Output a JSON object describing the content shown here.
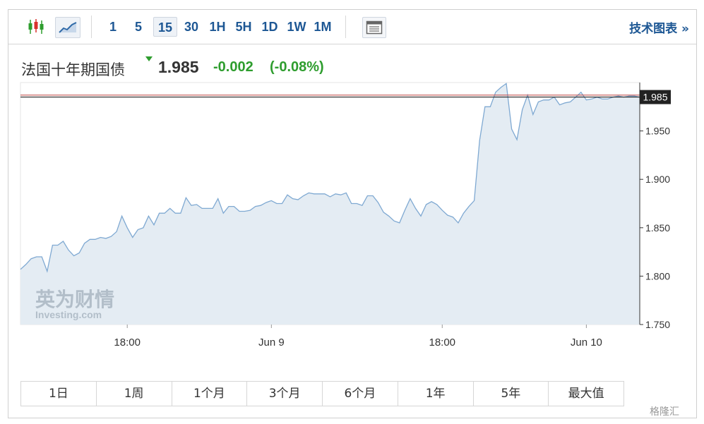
{
  "toolbar": {
    "chart_type_icons": [
      "candlestick-icon",
      "line-chart-icon"
    ],
    "intervals": [
      "1",
      "5",
      "15",
      "30",
      "1H",
      "5H",
      "1D",
      "1W",
      "1M"
    ],
    "active_interval": "15",
    "settings_icon": "table-icon",
    "tech_chart_label": "技术图表 »"
  },
  "header": {
    "name": "法国十年期国债",
    "price": "1.985",
    "change": "-0.002",
    "change_pct": "(-0.08%)",
    "down_color": "#2e9d2e"
  },
  "watermark": {
    "cn": "英为财情",
    "en": "Investing.com"
  },
  "ranges": [
    "1日",
    "1周",
    "1个月",
    "3个月",
    "6个月",
    "1年",
    "5年",
    "最大值"
  ],
  "corner_watermark": "格隆汇",
  "chart_data": {
    "type": "area",
    "y_ticks": [
      "1.750",
      "1.800",
      "1.850",
      "1.900",
      "1.950"
    ],
    "ylim": [
      1.75,
      2.0
    ],
    "x_tick_labels": [
      "18:00",
      "Jun 9",
      "18:00",
      "Jun 10"
    ],
    "x_tick_index": [
      20,
      47,
      79,
      106
    ],
    "last_value_label": "1.985",
    "reference_line": 1.987,
    "line_color": "#7fa9d2",
    "fill_color": "#e4ecf3",
    "values": [
      1.807,
      1.812,
      1.818,
      1.82,
      1.82,
      1.805,
      1.832,
      1.832,
      1.836,
      1.827,
      1.821,
      1.824,
      1.834,
      1.838,
      1.838,
      1.84,
      1.839,
      1.841,
      1.846,
      1.862,
      1.85,
      1.84,
      1.848,
      1.85,
      1.862,
      1.853,
      1.865,
      1.865,
      1.87,
      1.865,
      1.865,
      1.881,
      1.873,
      1.874,
      1.87,
      1.87,
      1.87,
      1.88,
      1.865,
      1.872,
      1.872,
      1.867,
      1.867,
      1.868,
      1.872,
      1.873,
      1.876,
      1.878,
      1.875,
      1.875,
      1.884,
      1.88,
      1.879,
      1.883,
      1.886,
      1.885,
      1.885,
      1.885,
      1.882,
      1.885,
      1.884,
      1.886,
      1.875,
      1.875,
      1.873,
      1.883,
      1.883,
      1.876,
      1.866,
      1.862,
      1.857,
      1.855,
      1.868,
      1.88,
      1.87,
      1.862,
      1.874,
      1.877,
      1.874,
      1.868,
      1.863,
      1.861,
      1.855,
      1.865,
      1.872,
      1.878,
      1.94,
      1.975,
      1.975,
      1.99,
      1.995,
      1.999,
      1.952,
      1.941,
      1.972,
      1.987,
      1.967,
      1.98,
      1.982,
      1.982,
      1.985,
      1.977,
      1.979,
      1.98,
      1.985,
      1.99,
      1.982,
      1.983,
      1.985,
      1.983,
      1.983,
      1.985,
      1.986,
      1.985,
      1.986,
      1.986,
      1.985
    ]
  }
}
